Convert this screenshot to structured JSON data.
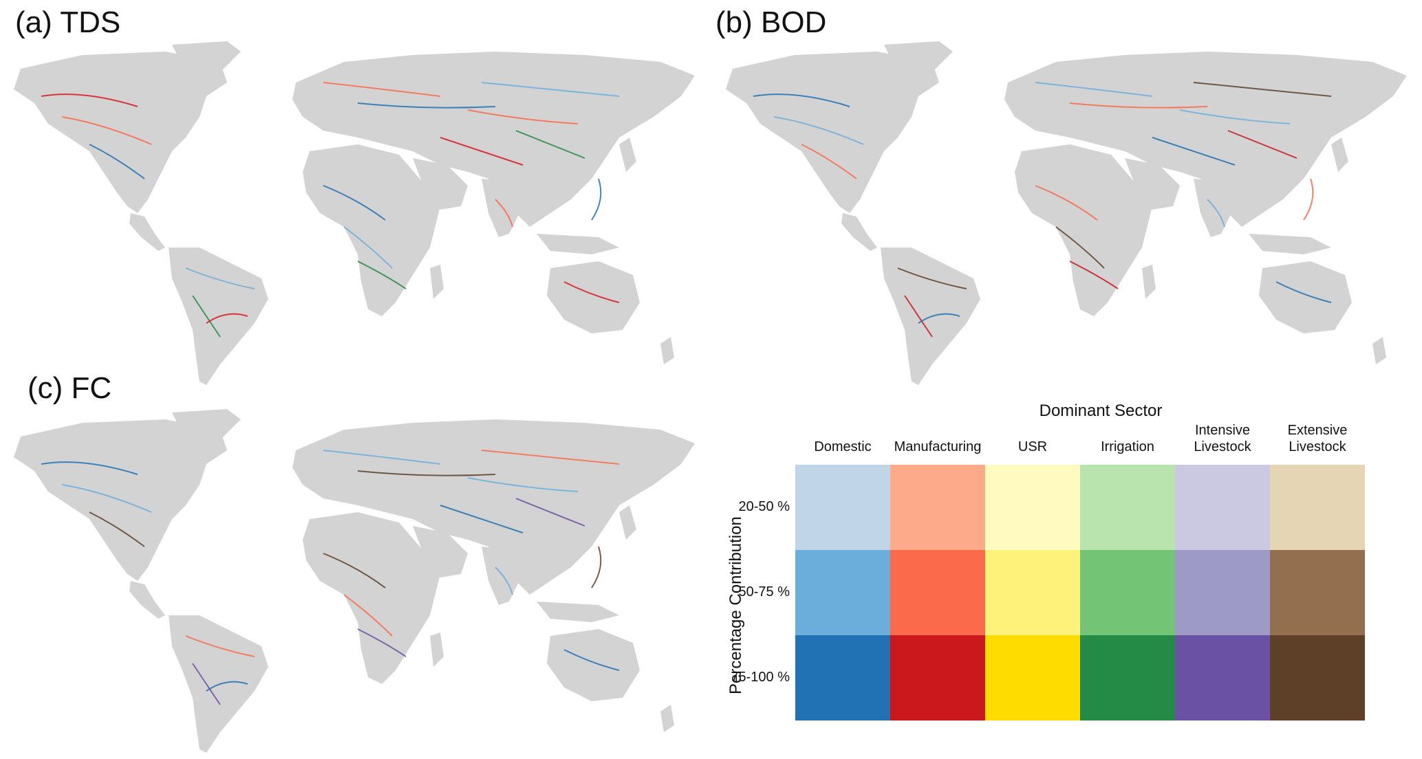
{
  "panels": [
    {
      "id": "tds",
      "label": "(a) TDS"
    },
    {
      "id": "bod",
      "label": "(b) BOD"
    },
    {
      "id": "fc",
      "label": "(c) FC"
    }
  ],
  "legend": {
    "title": "Dominant Sector",
    "axis_label": "Percentage Contribution",
    "sectors": [
      {
        "line1": "",
        "line2": "Domestic"
      },
      {
        "line1": "",
        "line2": "Manufacturing"
      },
      {
        "line1": "",
        "line2": "USR"
      },
      {
        "line1": "",
        "line2": "Irrigation"
      },
      {
        "line1": "Intensive",
        "line2": "Livestock"
      },
      {
        "line1": "Extensive",
        "line2": "Livestock"
      }
    ],
    "levels": [
      "20-50 %",
      "50-75 %",
      "75-100 %"
    ],
    "colors": [
      [
        "#c0d5e8",
        "#6caedb",
        "#2171b5"
      ],
      [
        "#fcaa8a",
        "#fb6a4a",
        "#cb181d"
      ],
      [
        "#fffac0",
        "#fff27a",
        "#fedc00"
      ],
      [
        "#b9e4ae",
        "#74c476",
        "#238b45"
      ],
      [
        "#cbc9e2",
        "#9e9ac8",
        "#6a51a3"
      ],
      [
        "#e6d5b4",
        "#936f50",
        "#5e4029"
      ]
    ]
  },
  "map_colors": {
    "land": "#d3d3d3",
    "tds": [
      "#d7191c",
      "#fb6a4a",
      "#2171b5",
      "#6caedb",
      "#238b45"
    ],
    "bod": [
      "#2171b5",
      "#6caedb",
      "#fb6a4a",
      "#5e4029",
      "#cb181d"
    ],
    "fc": [
      "#2171b5",
      "#6caedb",
      "#5e4029",
      "#fb6a4a",
      "#6a51a3"
    ]
  }
}
